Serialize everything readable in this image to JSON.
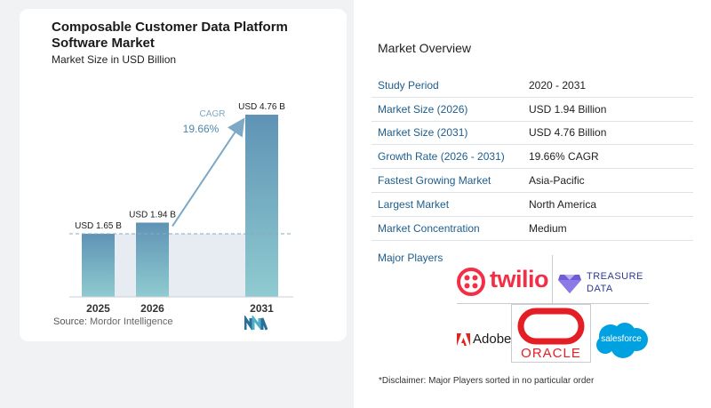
{
  "chart": {
    "title": "Composable Customer Data Platform Software Market",
    "subtitle": "Market Size in USD Billion",
    "source_label": "Source:",
    "source_value": "Mordor Intelligence",
    "cagr_label": "CAGR",
    "cagr_value": "19.66%"
  },
  "chart_data": {
    "type": "bar",
    "categories": [
      "2025",
      "2026",
      "2031"
    ],
    "values": [
      1.65,
      1.94,
      4.76
    ],
    "data_labels": [
      "USD 1.65 B",
      "USD 1.94 B",
      "USD 4.76 B"
    ],
    "reference_value": 1.65,
    "annotation": "CAGR 19.66%",
    "title": "Composable Customer Data Platform Software Market",
    "subtitle": "Market Size in USD Billion",
    "colors": {
      "bar_top": "#5f93b5",
      "bar_bottom": "#8fcbd0",
      "arrow": "#7ea9c6",
      "shade": "#e6ecf2"
    }
  },
  "overview": {
    "title": "Market Overview",
    "rows": [
      {
        "key": "Study Period",
        "value": "2020 - 2031"
      },
      {
        "key": "Market Size (2026)",
        "value": "USD 1.94 Billion"
      },
      {
        "key": "Market Size (2031)",
        "value": "USD 4.76 Billion"
      },
      {
        "key": "Growth Rate (2026 - 2031)",
        "value": "19.66% CAGR"
      },
      {
        "key": "Fastest Growing Market",
        "value": "Asia-Pacific"
      },
      {
        "key": "Largest Market",
        "value": "North America"
      },
      {
        "key": "Market Concentration",
        "value": "Medium"
      }
    ]
  },
  "players": {
    "title": "Major Players",
    "twilio": "twilio",
    "treasure_line1": "TREASURE",
    "treasure_line2": "DATA",
    "adobe": "Adobe",
    "oracle": "ORACLE",
    "salesforce": "salesforce",
    "colors": {
      "twilio": "#f22f46",
      "treasure": "#2f3b8f",
      "adobe": "#e1251b",
      "oracle": "#e31e25",
      "salesforce": "#00a1e0"
    }
  },
  "disclaimer": "*Disclaimer: Major Players sorted in no particular order"
}
